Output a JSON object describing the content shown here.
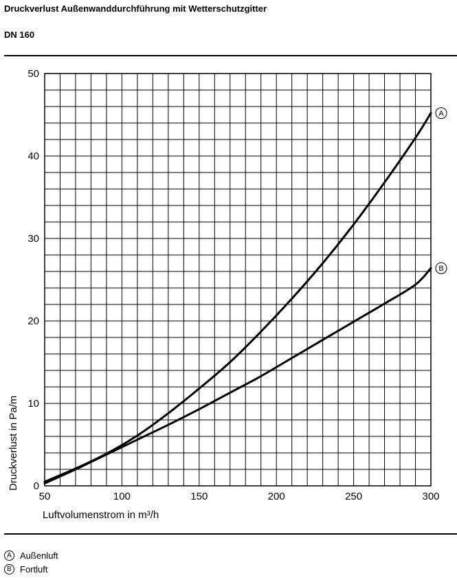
{
  "header": {
    "title": "Druckverlust Außenwanddurchführung mit Wetterschutzgitter",
    "subtitle": "DN 160"
  },
  "chart_data": {
    "type": "line",
    "xlabel": "Luftvolumenstrom in m³/h",
    "ylabel": "Druckverlust in Pa/m",
    "xlim": [
      50,
      300
    ],
    "ylim": [
      0,
      50
    ],
    "x_ticks": [
      50,
      100,
      150,
      200,
      250,
      300
    ],
    "y_ticks": [
      0,
      10,
      20,
      30,
      40,
      50
    ],
    "x_minor_step": 10,
    "y_minor_step": 2,
    "grid": true,
    "series": [
      {
        "name": "A",
        "x": [
          50,
          70,
          90,
          110,
          130,
          150,
          170,
          190,
          210,
          230,
          250,
          270,
          290,
          300
        ],
        "values": [
          0.5,
          2.1,
          3.9,
          6.1,
          8.8,
          11.8,
          15.0,
          18.7,
          22.7,
          27.0,
          31.7,
          36.8,
          42.2,
          45.2
        ]
      },
      {
        "name": "B",
        "x": [
          50,
          70,
          90,
          110,
          130,
          150,
          170,
          190,
          210,
          230,
          250,
          270,
          290,
          300
        ],
        "values": [
          0.3,
          2.0,
          3.8,
          5.6,
          7.4,
          9.3,
          11.3,
          13.3,
          15.5,
          17.7,
          19.9,
          22.1,
          24.4,
          26.4
        ]
      }
    ]
  },
  "legend": [
    {
      "key": "A",
      "label": "Außenluft"
    },
    {
      "key": "B",
      "label": "Fortluft"
    }
  ]
}
